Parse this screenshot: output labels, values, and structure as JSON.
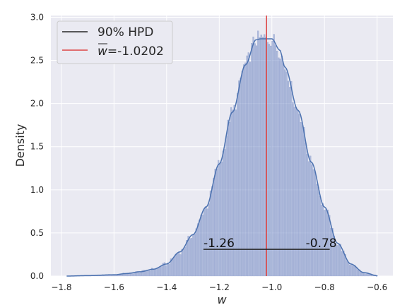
{
  "chart_data": {
    "type": "histogram",
    "xlabel": "w",
    "ylabel": "Density",
    "xlim": [
      -1.84,
      -0.54
    ],
    "ylim": [
      0,
      3.02
    ],
    "x_ticks": [
      -1.8,
      -1.6,
      -1.4,
      -1.2,
      -1.0,
      -0.8,
      -0.6
    ],
    "x_tick_labels": [
      "−1.8",
      "−1.6",
      "−1.4",
      "−1.2",
      "−1.0",
      "−0.8",
      "−0.6"
    ],
    "y_ticks": [
      0,
      0.5,
      1.0,
      1.5,
      2.0,
      2.5,
      3.0
    ],
    "y_tick_labels": [
      "0.0",
      "0.5",
      "1.0",
      "1.5",
      "2.0",
      "2.5",
      "3.0"
    ],
    "grid": true,
    "legend_position": "top-left",
    "legend": [
      {
        "label": "90% HPD",
        "color": "#262626"
      },
      {
        "label_prefix": "w",
        "label": "=-1.0202",
        "color": "#dd4444"
      }
    ],
    "kde": {
      "x": [
        -1.78,
        -1.7,
        -1.6,
        -1.55,
        -1.5,
        -1.45,
        -1.4,
        -1.35,
        -1.3,
        -1.25,
        -1.2,
        -1.15,
        -1.1,
        -1.06,
        -1.04,
        -1.0,
        -0.97,
        -0.95,
        -0.9,
        -0.85,
        -0.8,
        -0.75,
        -0.7,
        -0.65,
        -0.6
      ],
      "y": [
        0.0,
        0.005,
        0.015,
        0.03,
        0.05,
        0.08,
        0.14,
        0.28,
        0.48,
        0.8,
        1.3,
        1.9,
        2.45,
        2.74,
        2.75,
        2.75,
        2.62,
        2.42,
        1.92,
        1.32,
        0.8,
        0.38,
        0.14,
        0.04,
        0.005
      ]
    },
    "mean_line": {
      "x": -1.0202,
      "color": "#dd4444"
    },
    "hpd": {
      "lower": -1.26,
      "upper": -0.78,
      "y": 0.31,
      "lower_label": "-1.26",
      "upper_label": "-0.78"
    },
    "bar_color": "#7b92c9",
    "kde_color": "#4c72b0"
  }
}
